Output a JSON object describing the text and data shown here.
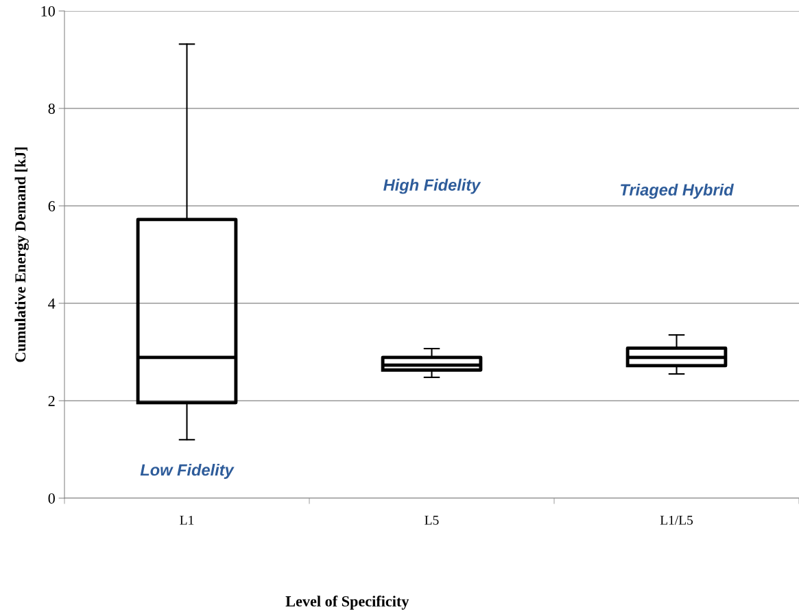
{
  "chart_data": {
    "type": "box",
    "xlabel": "Level of Specificity",
    "ylabel": "Cumulative Energy Demand [kJ]",
    "categories": [
      "L1",
      "L5",
      "L1/L5"
    ],
    "boxes": [
      {
        "low": 1.2,
        "q1": 1.96,
        "median": 2.89,
        "q3": 5.72,
        "high": 9.32
      },
      {
        "low": 2.48,
        "q1": 2.63,
        "median": 2.73,
        "q3": 2.89,
        "high": 3.07
      },
      {
        "low": 2.55,
        "q1": 2.72,
        "median": 2.89,
        "q3": 3.08,
        "high": 3.35
      }
    ],
    "color": "#000000",
    "ylim": [
      0,
      10
    ],
    "yticks": [
      0,
      2,
      4,
      6,
      8,
      10
    ],
    "grid": "y",
    "annotations": [
      "Low Fidelity",
      "High Fidelity",
      "Triaged Hybrid"
    ]
  }
}
